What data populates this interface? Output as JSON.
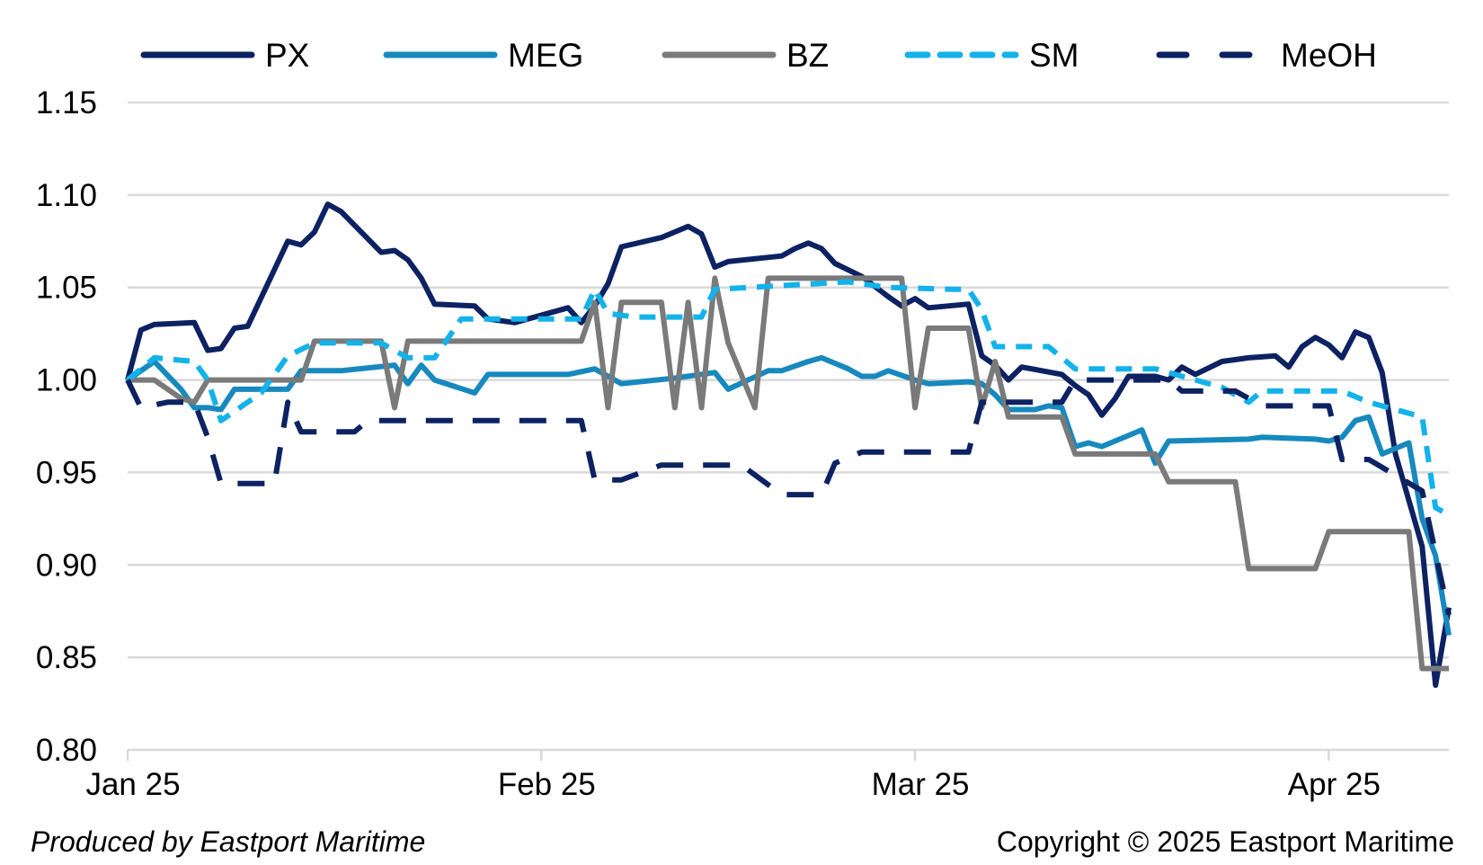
{
  "chart_data": {
    "type": "line",
    "title": "",
    "xlabel": "",
    "ylabel": "",
    "ylim": [
      0.8,
      1.15
    ],
    "yticks": [
      "0.80",
      "0.85",
      "0.90",
      "0.95",
      "1.00",
      "1.05",
      "1.10",
      "1.15"
    ],
    "x_ticks": [
      {
        "label": "Jan 25",
        "date": "2025-01-01"
      },
      {
        "label": "Feb 25",
        "date": "2025-02-01"
      },
      {
        "label": "Mar 25",
        "date": "2025-03-01"
      },
      {
        "label": "Apr 25",
        "date": "2025-04-01"
      }
    ],
    "xlim": [
      "2025-01-01",
      "2025-04-10"
    ],
    "grid": "horizontal",
    "legend": "top",
    "series": [
      {
        "name": "PX",
        "color": "#0d2262",
        "dash": "solid",
        "points": [
          [
            "2025-01-01",
            1.0
          ],
          [
            "2025-01-02",
            1.027
          ],
          [
            "2025-01-03",
            1.03
          ],
          [
            "2025-01-06",
            1.031
          ],
          [
            "2025-01-07",
            1.016
          ],
          [
            "2025-01-08",
            1.017
          ],
          [
            "2025-01-09",
            1.028
          ],
          [
            "2025-01-10",
            1.029
          ],
          [
            "2025-01-13",
            1.075
          ],
          [
            "2025-01-14",
            1.073
          ],
          [
            "2025-01-15",
            1.08
          ],
          [
            "2025-01-16",
            1.095
          ],
          [
            "2025-01-17",
            1.091
          ],
          [
            "2025-01-20",
            1.069
          ],
          [
            "2025-01-21",
            1.07
          ],
          [
            "2025-01-22",
            1.065
          ],
          [
            "2025-01-23",
            1.055
          ],
          [
            "2025-01-24",
            1.041
          ],
          [
            "2025-01-27",
            1.04
          ],
          [
            "2025-01-28",
            1.033
          ],
          [
            "2025-01-30",
            1.031
          ],
          [
            "2025-02-03",
            1.039
          ],
          [
            "2025-02-04",
            1.031
          ],
          [
            "2025-02-05",
            1.04
          ],
          [
            "2025-02-06",
            1.052
          ],
          [
            "2025-02-07",
            1.072
          ],
          [
            "2025-02-10",
            1.077
          ],
          [
            "2025-02-11",
            1.08
          ],
          [
            "2025-02-12",
            1.083
          ],
          [
            "2025-02-13",
            1.079
          ],
          [
            "2025-02-14",
            1.061
          ],
          [
            "2025-02-15",
            1.064
          ],
          [
            "2025-02-19",
            1.067
          ],
          [
            "2025-02-20",
            1.071
          ],
          [
            "2025-02-21",
            1.074
          ],
          [
            "2025-02-22",
            1.071
          ],
          [
            "2025-02-23",
            1.063
          ],
          [
            "2025-02-25",
            1.056
          ],
          [
            "2025-02-27",
            1.045
          ],
          [
            "2025-02-28",
            1.04
          ],
          [
            "2025-03-01",
            1.044
          ],
          [
            "2025-03-02",
            1.039
          ],
          [
            "2025-03-05",
            1.041
          ],
          [
            "2025-03-06",
            1.013
          ],
          [
            "2025-03-07",
            1.008
          ],
          [
            "2025-03-08",
            1.0
          ],
          [
            "2025-03-09",
            1.007
          ],
          [
            "2025-03-12",
            1.003
          ],
          [
            "2025-03-13",
            0.997
          ],
          [
            "2025-03-14",
            0.992
          ],
          [
            "2025-03-15",
            0.981
          ],
          [
            "2025-03-16",
            0.99
          ],
          [
            "2025-03-17",
            1.002
          ],
          [
            "2025-03-19",
            1.002
          ],
          [
            "2025-03-20",
            1.0
          ],
          [
            "2025-03-21",
            1.007
          ],
          [
            "2025-03-22",
            1.003
          ],
          [
            "2025-03-24",
            1.01
          ],
          [
            "2025-03-26",
            1.012
          ],
          [
            "2025-03-28",
            1.013
          ],
          [
            "2025-03-29",
            1.007
          ],
          [
            "2025-03-30",
            1.018
          ],
          [
            "2025-03-31",
            1.023
          ],
          [
            "2025-04-01",
            1.019
          ],
          [
            "2025-04-02",
            1.012
          ],
          [
            "2025-04-03",
            1.026
          ],
          [
            "2025-04-04",
            1.023
          ],
          [
            "2025-04-05",
            1.004
          ],
          [
            "2025-04-06",
            0.96
          ],
          [
            "2025-04-08",
            0.91
          ],
          [
            "2025-04-09",
            0.835
          ],
          [
            "2025-04-10",
            0.877
          ]
        ]
      },
      {
        "name": "MEG",
        "color": "#1789be",
        "dash": "solid",
        "points": [
          [
            "2025-01-01",
            1.0
          ],
          [
            "2025-01-03",
            1.01
          ],
          [
            "2025-01-05",
            0.995
          ],
          [
            "2025-01-06",
            0.985
          ],
          [
            "2025-01-07",
            0.985
          ],
          [
            "2025-01-08",
            0.984
          ],
          [
            "2025-01-09",
            0.995
          ],
          [
            "2025-01-13",
            0.995
          ],
          [
            "2025-01-14",
            1.005
          ],
          [
            "2025-01-17",
            1.005
          ],
          [
            "2025-01-21",
            1.008
          ],
          [
            "2025-01-22",
            0.998
          ],
          [
            "2025-01-23",
            1.008
          ],
          [
            "2025-01-24",
            1.0
          ],
          [
            "2025-01-27",
            0.993
          ],
          [
            "2025-01-28",
            1.003
          ],
          [
            "2025-02-03",
            1.003
          ],
          [
            "2025-02-05",
            1.006
          ],
          [
            "2025-02-07",
            0.998
          ],
          [
            "2025-02-11",
            1.001
          ],
          [
            "2025-02-14",
            1.004
          ],
          [
            "2025-02-15",
            0.995
          ],
          [
            "2025-02-18",
            1.005
          ],
          [
            "2025-02-19",
            1.005
          ],
          [
            "2025-02-21",
            1.01
          ],
          [
            "2025-02-22",
            1.012
          ],
          [
            "2025-02-24",
            1.006
          ],
          [
            "2025-02-25",
            1.002
          ],
          [
            "2025-02-26",
            1.002
          ],
          [
            "2025-02-27",
            1.005
          ],
          [
            "2025-03-01",
            1.0
          ],
          [
            "2025-03-02",
            0.998
          ],
          [
            "2025-03-05",
            0.999
          ],
          [
            "2025-03-06",
            0.998
          ],
          [
            "2025-03-07",
            0.992
          ],
          [
            "2025-03-08",
            0.984
          ],
          [
            "2025-03-10",
            0.984
          ],
          [
            "2025-03-11",
            0.986
          ],
          [
            "2025-03-12",
            0.985
          ],
          [
            "2025-03-13",
            0.964
          ],
          [
            "2025-03-14",
            0.966
          ],
          [
            "2025-03-15",
            0.964
          ],
          [
            "2025-03-18",
            0.973
          ],
          [
            "2025-03-19",
            0.955
          ],
          [
            "2025-03-20",
            0.967
          ],
          [
            "2025-03-26",
            0.968
          ],
          [
            "2025-03-27",
            0.969
          ],
          [
            "2025-03-31",
            0.968
          ],
          [
            "2025-04-01",
            0.967
          ],
          [
            "2025-04-02",
            0.969
          ],
          [
            "2025-04-03",
            0.978
          ],
          [
            "2025-04-04",
            0.98
          ],
          [
            "2025-04-05",
            0.96
          ],
          [
            "2025-04-07",
            0.966
          ],
          [
            "2025-04-08",
            0.925
          ],
          [
            "2025-04-09",
            0.905
          ],
          [
            "2025-04-10",
            0.862
          ]
        ]
      },
      {
        "name": "BZ",
        "color": "#7a7a7a",
        "dash": "solid",
        "points": [
          [
            "2025-01-01",
            1.0
          ],
          [
            "2025-01-03",
            1.0
          ],
          [
            "2025-01-05",
            0.99
          ],
          [
            "2025-01-06",
            0.988
          ],
          [
            "2025-01-07",
            1.0
          ],
          [
            "2025-01-14",
            1.0
          ],
          [
            "2025-01-15",
            1.021
          ],
          [
            "2025-01-20",
            1.021
          ],
          [
            "2025-01-21",
            0.985
          ],
          [
            "2025-01-22",
            1.021
          ],
          [
            "2025-02-04",
            1.021
          ],
          [
            "2025-02-05",
            1.042
          ],
          [
            "2025-02-06",
            0.985
          ],
          [
            "2025-02-07",
            1.042
          ],
          [
            "2025-02-10",
            1.042
          ],
          [
            "2025-02-11",
            0.985
          ],
          [
            "2025-02-12",
            1.042
          ],
          [
            "2025-02-13",
            0.985
          ],
          [
            "2025-02-14",
            1.055
          ],
          [
            "2025-02-15",
            1.02
          ],
          [
            "2025-02-17",
            0.985
          ],
          [
            "2025-02-18",
            1.055
          ],
          [
            "2025-02-28",
            1.055
          ],
          [
            "2025-03-01",
            0.985
          ],
          [
            "2025-03-02",
            1.028
          ],
          [
            "2025-03-05",
            1.028
          ],
          [
            "2025-03-06",
            0.985
          ],
          [
            "2025-03-07",
            1.01
          ],
          [
            "2025-03-08",
            0.98
          ],
          [
            "2025-03-12",
            0.98
          ],
          [
            "2025-03-13",
            0.96
          ],
          [
            "2025-03-19",
            0.96
          ],
          [
            "2025-03-20",
            0.945
          ],
          [
            "2025-03-25",
            0.945
          ],
          [
            "2025-03-26",
            0.898
          ],
          [
            "2025-03-31",
            0.898
          ],
          [
            "2025-04-01",
            0.918
          ],
          [
            "2025-04-07",
            0.918
          ],
          [
            "2025-04-08",
            0.844
          ],
          [
            "2025-04-10",
            0.844
          ]
        ]
      },
      {
        "name": "SM",
        "color": "#13b2ea",
        "dash": "dashed",
        "points": [
          [
            "2025-01-01",
            1.0
          ],
          [
            "2025-01-03",
            1.012
          ],
          [
            "2025-01-06",
            1.01
          ],
          [
            "2025-01-07",
            1.0
          ],
          [
            "2025-01-08",
            0.978
          ],
          [
            "2025-01-11",
            0.993
          ],
          [
            "2025-01-13",
            1.013
          ],
          [
            "2025-01-15",
            1.02
          ],
          [
            "2025-01-20",
            1.02
          ],
          [
            "2025-01-22",
            1.012
          ],
          [
            "2025-01-24",
            1.012
          ],
          [
            "2025-01-26",
            1.033
          ],
          [
            "2025-02-04",
            1.033
          ],
          [
            "2025-02-05",
            1.049
          ],
          [
            "2025-02-06",
            1.036
          ],
          [
            "2025-02-07",
            1.035
          ],
          [
            "2025-02-08",
            1.034
          ],
          [
            "2025-02-13",
            1.034
          ],
          [
            "2025-02-14",
            1.049
          ],
          [
            "2025-02-24",
            1.053
          ],
          [
            "2025-02-27",
            1.05
          ],
          [
            "2025-03-04",
            1.049
          ],
          [
            "2025-03-05",
            1.049
          ],
          [
            "2025-03-06",
            1.038
          ],
          [
            "2025-03-07",
            1.018
          ],
          [
            "2025-03-11",
            1.018
          ],
          [
            "2025-03-13",
            1.006
          ],
          [
            "2025-03-19",
            1.006
          ],
          [
            "2025-03-21",
            1.002
          ],
          [
            "2025-03-24",
            0.996
          ],
          [
            "2025-03-26",
            0.988
          ],
          [
            "2025-03-27",
            0.994
          ],
          [
            "2025-04-02",
            0.994
          ],
          [
            "2025-04-04",
            0.988
          ],
          [
            "2025-04-08",
            0.98
          ],
          [
            "2025-04-09",
            0.931
          ],
          [
            "2025-04-10",
            0.927
          ]
        ]
      },
      {
        "name": "MeOH",
        "color": "#0d2262",
        "dash": "longdash",
        "points": [
          [
            "2025-01-01",
            1.0
          ],
          [
            "2025-01-02",
            0.985
          ],
          [
            "2025-01-04",
            0.988
          ],
          [
            "2025-01-06",
            0.988
          ],
          [
            "2025-01-07",
            0.969
          ],
          [
            "2025-01-08",
            0.944
          ],
          [
            "2025-01-10",
            0.944
          ],
          [
            "2025-01-12",
            0.944
          ],
          [
            "2025-01-13",
            0.988
          ],
          [
            "2025-01-14",
            0.972
          ],
          [
            "2025-01-15",
            0.972
          ],
          [
            "2025-01-18",
            0.972
          ],
          [
            "2025-01-19",
            0.978
          ],
          [
            "2025-02-04",
            0.978
          ],
          [
            "2025-02-05",
            0.946
          ],
          [
            "2025-02-07",
            0.946
          ],
          [
            "2025-02-10",
            0.954
          ],
          [
            "2025-02-16",
            0.954
          ],
          [
            "2025-02-19",
            0.938
          ],
          [
            "2025-02-22",
            0.938
          ],
          [
            "2025-02-23",
            0.955
          ],
          [
            "2025-02-25",
            0.961
          ],
          [
            "2025-03-05",
            0.961
          ],
          [
            "2025-03-06",
            0.988
          ],
          [
            "2025-03-10",
            0.988
          ],
          [
            "2025-03-12",
            0.988
          ],
          [
            "2025-03-13",
            1.0
          ],
          [
            "2025-03-20",
            1.0
          ],
          [
            "2025-03-21",
            0.994
          ],
          [
            "2025-03-25",
            0.994
          ],
          [
            "2025-03-27",
            0.986
          ],
          [
            "2025-04-01",
            0.986
          ],
          [
            "2025-04-02",
            0.957
          ],
          [
            "2025-04-04",
            0.957
          ],
          [
            "2025-04-08",
            0.94
          ],
          [
            "2025-04-10",
            0.873
          ]
        ]
      }
    ]
  },
  "footer": {
    "left": "Produced by Eastport Maritime",
    "right": "Copyright © 2025 Eastport Maritime"
  }
}
